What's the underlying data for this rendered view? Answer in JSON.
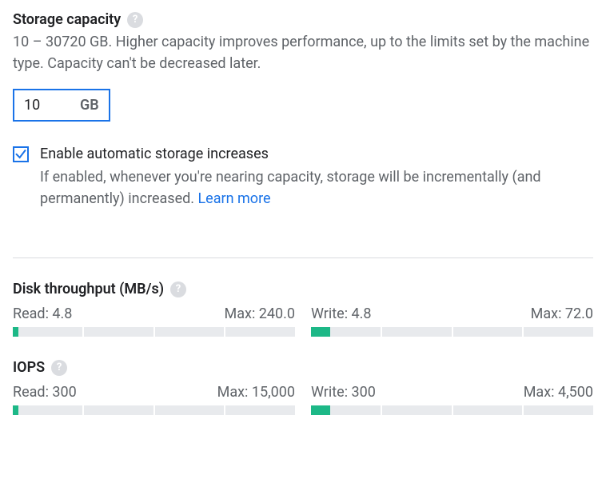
{
  "storage": {
    "title": "Storage capacity",
    "description": "10 – 30720 GB. Higher capacity improves performance, up to the limits set by the machine type. Capacity can't be decreased later.",
    "value": "10",
    "unit": "GB",
    "checkbox": {
      "checked": true,
      "label": "Enable automatic storage increases",
      "description": "If enabled, whenever you're nearing capacity, storage will be incrementally (and permanently) increased. ",
      "learn_more": "Learn more"
    }
  },
  "throughput": {
    "title": "Disk throughput (MB/s)",
    "read": {
      "label": "Read: 4.8",
      "max_label": "Max: 240.0",
      "fill_pct": 2,
      "segments": 4
    },
    "write": {
      "label": "Write: 4.8",
      "max_label": "Max: 72.0",
      "fill_pct": 6.7,
      "segments": 4
    }
  },
  "iops": {
    "title": "IOPS",
    "read": {
      "label": "Read: 300",
      "max_label": "Max: 15,000",
      "fill_pct": 2,
      "segments": 4
    },
    "write": {
      "label": "Write: 300",
      "max_label": "Max: 4,500",
      "fill_pct": 6.7,
      "segments": 4
    }
  },
  "colors": {
    "accent": "#1a73e8",
    "gauge_fill": "#1db887",
    "gauge_bg": "#e8eaed",
    "text_primary": "#202124",
    "text_secondary": "#5f6368",
    "help_bg": "#dadce0"
  }
}
